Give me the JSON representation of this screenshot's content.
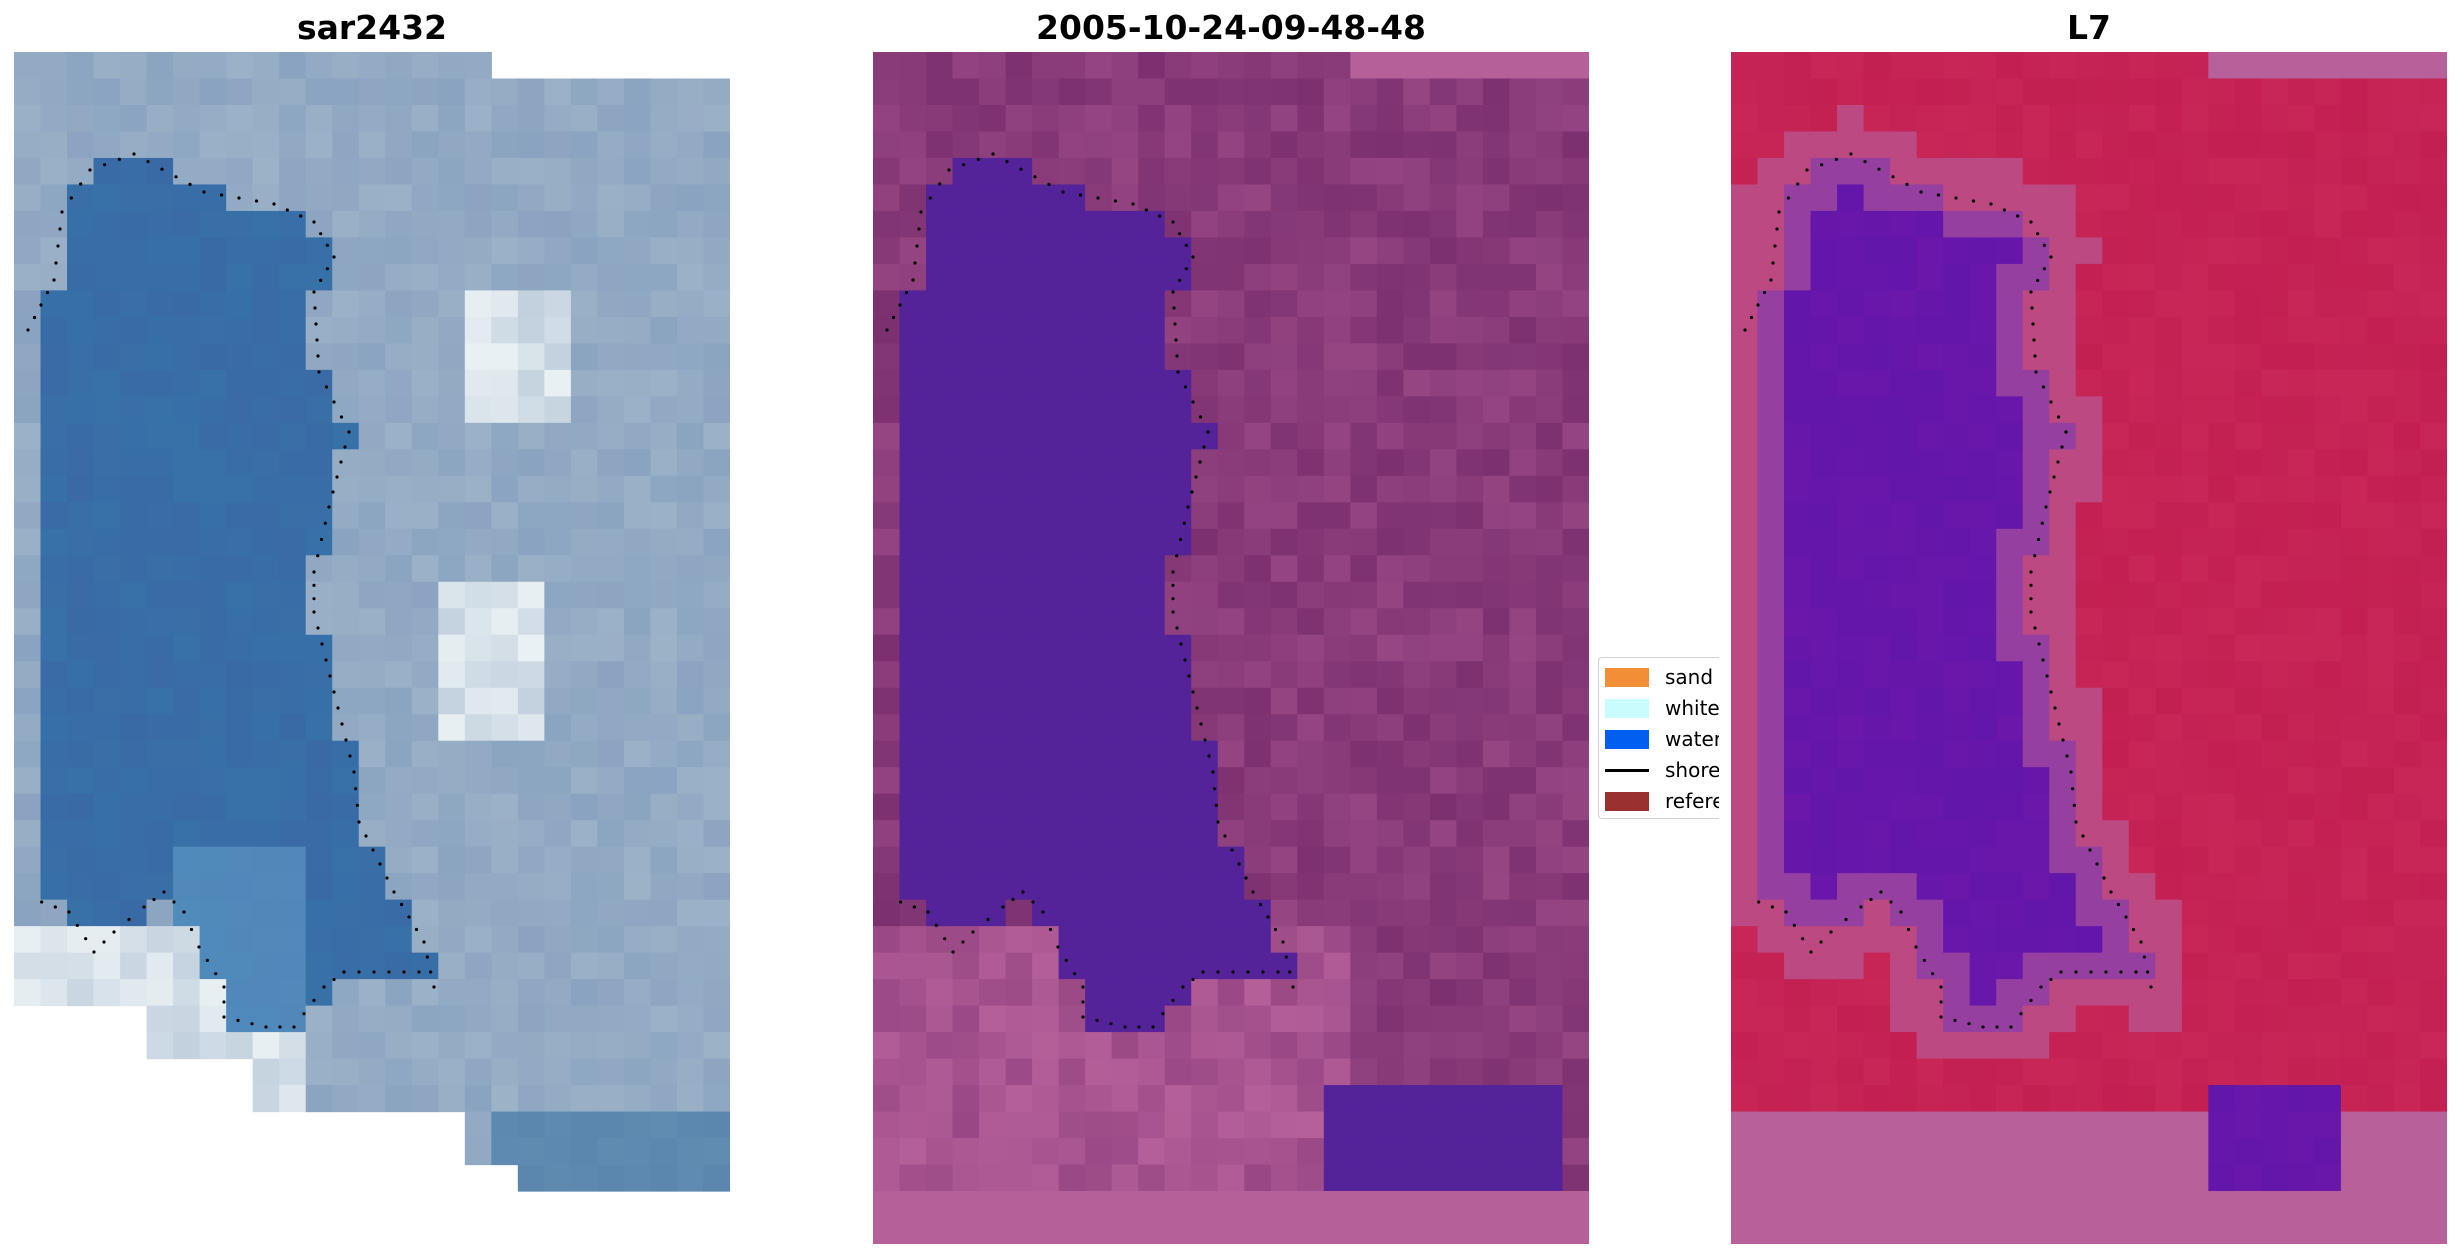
{
  "panels": [
    {
      "title": "sar2432",
      "kind": "rgb-imagery"
    },
    {
      "title": "2005-10-24-09-48-48",
      "kind": "classified-overlay"
    },
    {
      "title": "L7",
      "kind": "water-index"
    }
  ],
  "legend": {
    "entries": [
      {
        "label": "sand",
        "color": "#f28e35"
      },
      {
        "label": "whitew",
        "color": "#c9fdfd"
      },
      {
        "label": "water",
        "color": "#005ef0"
      },
      {
        "label": "shoreli",
        "color": "#000000"
      },
      {
        "label": "referen",
        "color": "#9a3030"
      }
    ]
  },
  "colors": {
    "rgb_water": "#3a6aa6",
    "rgb_land": "#8aa3c0",
    "rgb_foam": "#eef4f6",
    "class_water": "#54239a",
    "class_land": "#7c3070",
    "class_sand": "#b6609a",
    "index_water": "#6a17aa",
    "index_land": "#c31f52",
    "index_edge": "#b8609a",
    "shoreline": "#000000"
  }
}
